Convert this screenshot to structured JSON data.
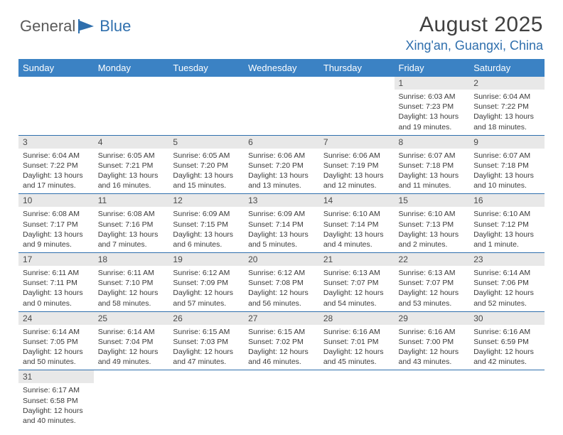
{
  "logo": {
    "text1": "General",
    "text2": "Blue"
  },
  "title": "August 2025",
  "location": "Xing'an, Guangxi, China",
  "colors": {
    "header_bg": "#3b82c4",
    "header_fg": "#ffffff",
    "accent": "#2f6fad",
    "daynum_bg": "#e8e8e8",
    "text": "#3a3a3a",
    "title_color": "#404040"
  },
  "day_headers": [
    "Sunday",
    "Monday",
    "Tuesday",
    "Wednesday",
    "Thursday",
    "Friday",
    "Saturday"
  ],
  "weeks": [
    [
      null,
      null,
      null,
      null,
      null,
      {
        "n": "1",
        "sunrise": "6:03 AM",
        "sunset": "7:23 PM",
        "dl": "13 hours and 19 minutes."
      },
      {
        "n": "2",
        "sunrise": "6:04 AM",
        "sunset": "7:22 PM",
        "dl": "13 hours and 18 minutes."
      }
    ],
    [
      {
        "n": "3",
        "sunrise": "6:04 AM",
        "sunset": "7:22 PM",
        "dl": "13 hours and 17 minutes."
      },
      {
        "n": "4",
        "sunrise": "6:05 AM",
        "sunset": "7:21 PM",
        "dl": "13 hours and 16 minutes."
      },
      {
        "n": "5",
        "sunrise": "6:05 AM",
        "sunset": "7:20 PM",
        "dl": "13 hours and 15 minutes."
      },
      {
        "n": "6",
        "sunrise": "6:06 AM",
        "sunset": "7:20 PM",
        "dl": "13 hours and 13 minutes."
      },
      {
        "n": "7",
        "sunrise": "6:06 AM",
        "sunset": "7:19 PM",
        "dl": "13 hours and 12 minutes."
      },
      {
        "n": "8",
        "sunrise": "6:07 AM",
        "sunset": "7:18 PM",
        "dl": "13 hours and 11 minutes."
      },
      {
        "n": "9",
        "sunrise": "6:07 AM",
        "sunset": "7:18 PM",
        "dl": "13 hours and 10 minutes."
      }
    ],
    [
      {
        "n": "10",
        "sunrise": "6:08 AM",
        "sunset": "7:17 PM",
        "dl": "13 hours and 9 minutes."
      },
      {
        "n": "11",
        "sunrise": "6:08 AM",
        "sunset": "7:16 PM",
        "dl": "13 hours and 7 minutes."
      },
      {
        "n": "12",
        "sunrise": "6:09 AM",
        "sunset": "7:15 PM",
        "dl": "13 hours and 6 minutes."
      },
      {
        "n": "13",
        "sunrise": "6:09 AM",
        "sunset": "7:14 PM",
        "dl": "13 hours and 5 minutes."
      },
      {
        "n": "14",
        "sunrise": "6:10 AM",
        "sunset": "7:14 PM",
        "dl": "13 hours and 4 minutes."
      },
      {
        "n": "15",
        "sunrise": "6:10 AM",
        "sunset": "7:13 PM",
        "dl": "13 hours and 2 minutes."
      },
      {
        "n": "16",
        "sunrise": "6:10 AM",
        "sunset": "7:12 PM",
        "dl": "13 hours and 1 minute."
      }
    ],
    [
      {
        "n": "17",
        "sunrise": "6:11 AM",
        "sunset": "7:11 PM",
        "dl": "13 hours and 0 minutes."
      },
      {
        "n": "18",
        "sunrise": "6:11 AM",
        "sunset": "7:10 PM",
        "dl": "12 hours and 58 minutes."
      },
      {
        "n": "19",
        "sunrise": "6:12 AM",
        "sunset": "7:09 PM",
        "dl": "12 hours and 57 minutes."
      },
      {
        "n": "20",
        "sunrise": "6:12 AM",
        "sunset": "7:08 PM",
        "dl": "12 hours and 56 minutes."
      },
      {
        "n": "21",
        "sunrise": "6:13 AM",
        "sunset": "7:07 PM",
        "dl": "12 hours and 54 minutes."
      },
      {
        "n": "22",
        "sunrise": "6:13 AM",
        "sunset": "7:07 PM",
        "dl": "12 hours and 53 minutes."
      },
      {
        "n": "23",
        "sunrise": "6:14 AM",
        "sunset": "7:06 PM",
        "dl": "12 hours and 52 minutes."
      }
    ],
    [
      {
        "n": "24",
        "sunrise": "6:14 AM",
        "sunset": "7:05 PM",
        "dl": "12 hours and 50 minutes."
      },
      {
        "n": "25",
        "sunrise": "6:14 AM",
        "sunset": "7:04 PM",
        "dl": "12 hours and 49 minutes."
      },
      {
        "n": "26",
        "sunrise": "6:15 AM",
        "sunset": "7:03 PM",
        "dl": "12 hours and 47 minutes."
      },
      {
        "n": "27",
        "sunrise": "6:15 AM",
        "sunset": "7:02 PM",
        "dl": "12 hours and 46 minutes."
      },
      {
        "n": "28",
        "sunrise": "6:16 AM",
        "sunset": "7:01 PM",
        "dl": "12 hours and 45 minutes."
      },
      {
        "n": "29",
        "sunrise": "6:16 AM",
        "sunset": "7:00 PM",
        "dl": "12 hours and 43 minutes."
      },
      {
        "n": "30",
        "sunrise": "6:16 AM",
        "sunset": "6:59 PM",
        "dl": "12 hours and 42 minutes."
      }
    ],
    [
      {
        "n": "31",
        "sunrise": "6:17 AM",
        "sunset": "6:58 PM",
        "dl": "12 hours and 40 minutes."
      },
      null,
      null,
      null,
      null,
      null,
      null
    ]
  ],
  "labels": {
    "sunrise": "Sunrise:",
    "sunset": "Sunset:",
    "daylight": "Daylight:"
  }
}
